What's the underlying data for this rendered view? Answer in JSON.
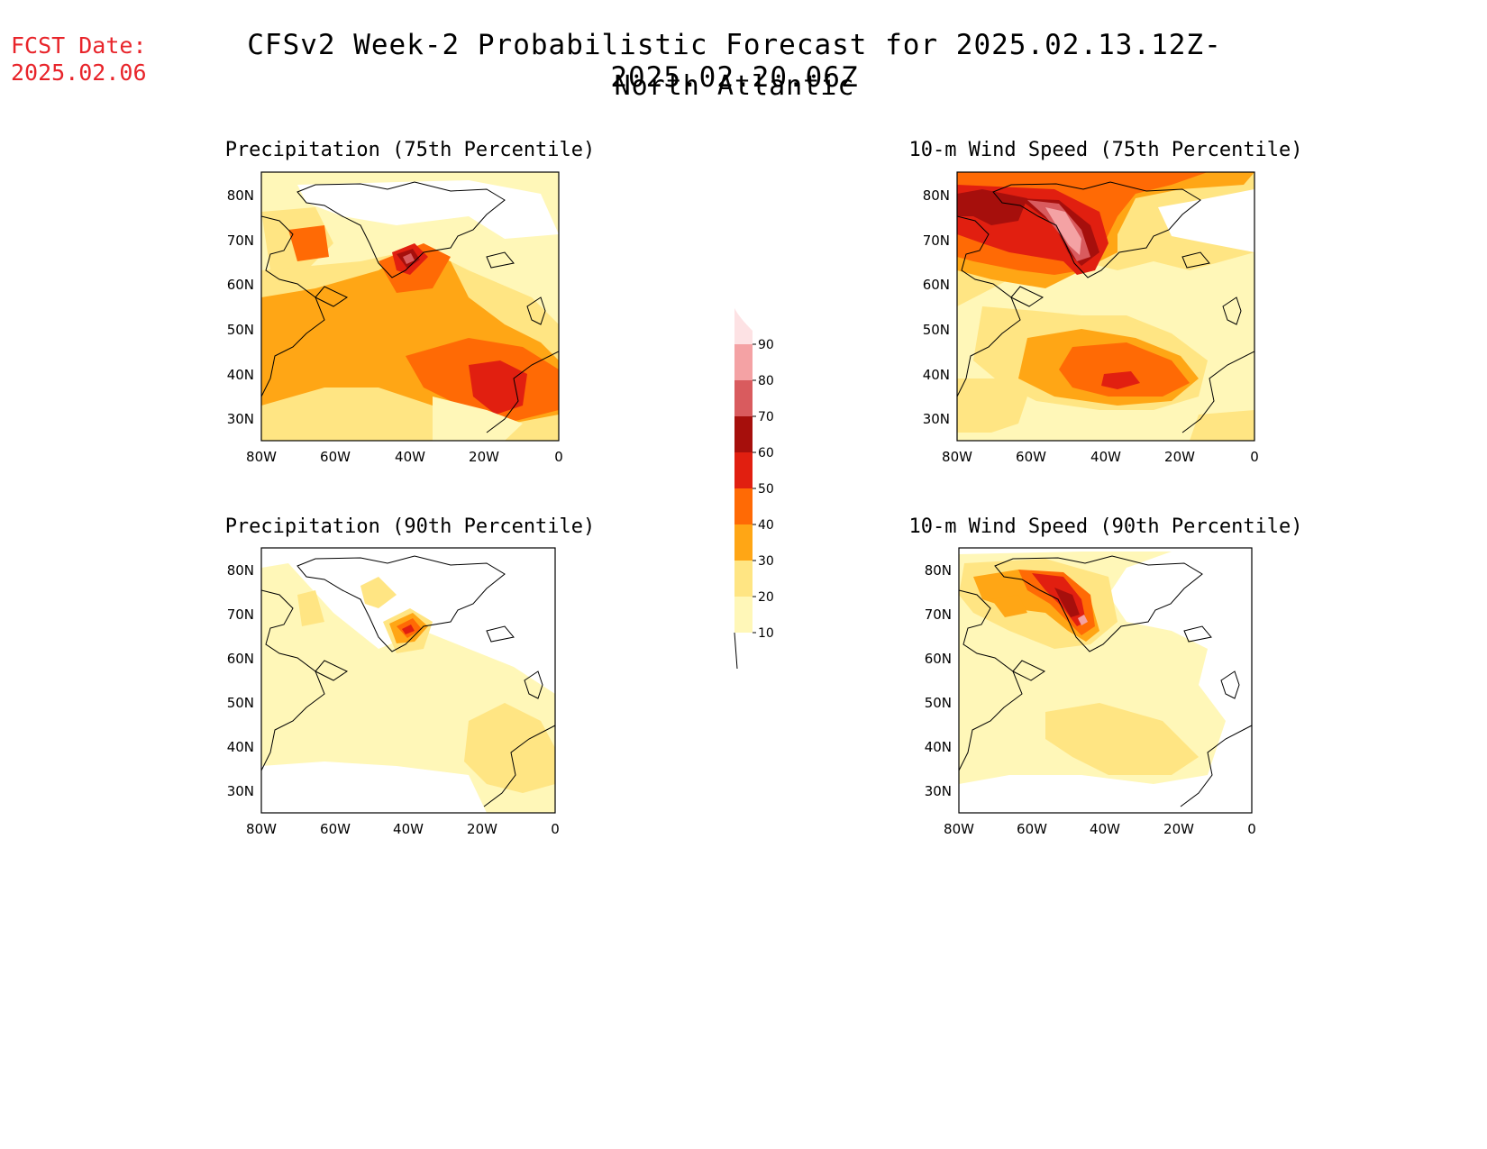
{
  "header": {
    "fcst_label": "FCST Date:",
    "fcst_date": "2025.02.06",
    "title": "CFSv2 Week-2 Probabilistic Forecast for 2025.02.13.12Z-2025.02.20.06Z",
    "subtitle": "North Atlantic"
  },
  "axes": {
    "lat_ticks": [
      "80N",
      "70N",
      "60N",
      "50N",
      "40N",
      "30N"
    ],
    "lon_ticks": [
      "80W",
      "60W",
      "40W",
      "20W",
      "0"
    ]
  },
  "colorbar": {
    "levels": [
      "10",
      "20",
      "30",
      "40",
      "50",
      "60",
      "70",
      "80",
      "90"
    ],
    "colors": [
      "#fff7b8",
      "#ffe583",
      "#ffa615",
      "#ff6a05",
      "#e11f10",
      "#a60f0c",
      "#d95b5e",
      "#f4a2a4",
      "#fde2e4"
    ]
  },
  "panels": [
    {
      "id": "precip-75",
      "title": "Precipitation (75th Percentile)"
    },
    {
      "id": "wind-75",
      "title": "10-m Wind Speed (75th Percentile)"
    },
    {
      "id": "precip-90",
      "title": "Precipitation (90th Percentile)"
    },
    {
      "id": "wind-90",
      "title": "10-m Wind Speed (90th Percentile)"
    }
  ]
}
